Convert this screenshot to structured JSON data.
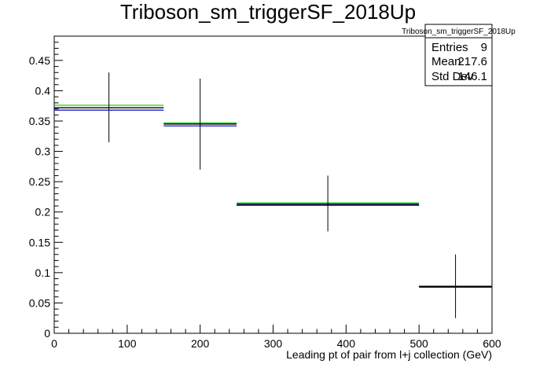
{
  "chart_data": {
    "type": "scatter",
    "title": "Triboson_sm_triggerSF_2018Up",
    "xlabel": "Leading pt of pair from l+j collection (GeV)",
    "ylabel": "",
    "xlim": [
      0,
      600
    ],
    "ylim": [
      0,
      0.49
    ],
    "x_ticks": [
      "0",
      "100",
      "200",
      "300",
      "400",
      "500",
      "600"
    ],
    "y_ticks": [
      "0",
      "0.05",
      "0.1",
      "0.15",
      "0.2",
      "0.25",
      "0.3",
      "0.35",
      "0.4",
      "0.45"
    ],
    "y_tick_values": [
      0,
      0.05,
      0.1,
      0.15,
      0.2,
      0.25,
      0.3,
      0.35,
      0.4,
      0.45
    ],
    "grid": false,
    "colors": {
      "main": "#000000",
      "up": "#00cc00",
      "down": "#0000cc"
    },
    "bins": [
      {
        "xlow": 0,
        "xhigh": 150,
        "value": 0.372,
        "err_low": 0.315,
        "err_high": 0.43,
        "up": 0.376,
        "down": 0.368
      },
      {
        "xlow": 150,
        "xhigh": 250,
        "value": 0.345,
        "err_low": 0.27,
        "err_high": 0.42,
        "up": 0.347,
        "down": 0.342
      },
      {
        "xlow": 250,
        "xhigh": 500,
        "value": 0.213,
        "err_low": 0.168,
        "err_high": 0.26,
        "up": 0.215,
        "down": 0.211
      },
      {
        "xlow": 500,
        "xhigh": 600,
        "value": 0.077,
        "err_low": 0.025,
        "err_high": 0.13,
        "up": 0.078,
        "down": 0.076
      }
    ],
    "stats": {
      "name": "Triboson_sm_triggerSF_2018Up",
      "rows": [
        {
          "label": "Entries",
          "value": "9"
        },
        {
          "label": "Mean",
          "value": "217.6"
        },
        {
          "label": "Std Dev",
          "value": "146.1"
        }
      ]
    }
  }
}
